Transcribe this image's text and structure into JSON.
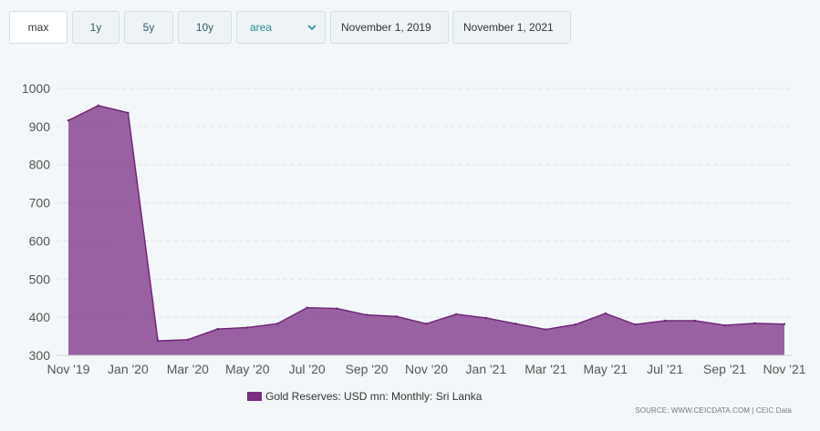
{
  "toolbar": {
    "range_buttons": [
      "max",
      "1y",
      "5y",
      "10y"
    ],
    "active_range": "max",
    "chart_type_selected": "area",
    "start_date": "November 1, 2019",
    "end_date": "November 1, 2021"
  },
  "legend": {
    "label": "Gold Reserves: USD mn: Monthly: Sri Lanka"
  },
  "source": "SOURCE: WWW.CEICDATA.COM | CEIC Data",
  "colors": {
    "series_fill": "#7b2d84",
    "series_stroke": "#6b2275",
    "grid": "#dde3e6",
    "axis_text": "#555555"
  },
  "chart_data": {
    "type": "area",
    "x": [
      "Nov '19",
      "Dec '19",
      "Jan '20",
      "Feb '20",
      "Mar '20",
      "Apr '20",
      "May '20",
      "Jun '20",
      "Jul '20",
      "Aug '20",
      "Sep '20",
      "Oct '20",
      "Nov '20",
      "Dec '20",
      "Jan '21",
      "Feb '21",
      "Mar '21",
      "Apr '21",
      "May '21",
      "Jun '21",
      "Jul '21",
      "Aug '21",
      "Sep '21",
      "Oct '21",
      "Nov '21"
    ],
    "x_tick_labels": [
      "Nov '19",
      "Jan '20",
      "Mar '20",
      "May '20",
      "Jul '20",
      "Sep '20",
      "Nov '20",
      "Jan '21",
      "Mar '21",
      "May '21",
      "Jul '21",
      "Sep '21",
      "Nov '21"
    ],
    "series": [
      {
        "name": "Gold Reserves: USD mn: Monthly: Sri Lanka",
        "values": [
          916,
          955,
          936,
          338,
          341,
          369,
          373,
          383,
          425,
          423,
          406,
          402,
          383,
          408,
          398,
          383,
          368,
          381,
          410,
          381,
          391,
          391,
          379,
          384,
          382
        ]
      }
    ],
    "ylim": [
      300,
      1000
    ],
    "yticks": [
      300,
      400,
      500,
      600,
      700,
      800,
      900,
      1000
    ],
    "grid": true,
    "legend_position": "bottom-center"
  }
}
